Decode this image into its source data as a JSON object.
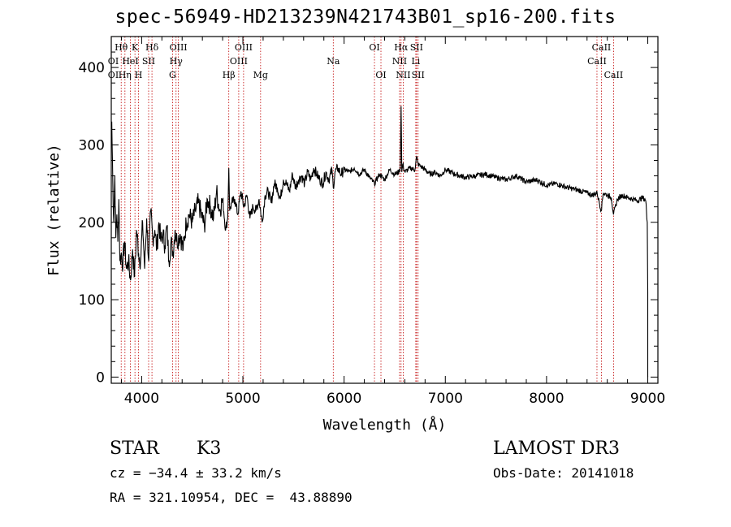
{
  "chart_data": {
    "type": "line",
    "title": "spec-56949-HD213239N421743B01_sp16-200.fits",
    "xlabel": "Wavelength (Å)",
    "ylabel": "Flux (relative)",
    "xlim": [
      3700,
      9100
    ],
    "ylim": [
      -8,
      440
    ],
    "x_ticks": [
      4000,
      5000,
      6000,
      7000,
      8000,
      9000
    ],
    "y_ticks": [
      0,
      100,
      200,
      300,
      400
    ],
    "grid": false,
    "line_color": "#000000",
    "marker_color": "#c00000",
    "series": [
      {
        "x": [
          3705,
          3715,
          3725,
          3735,
          3745,
          3755,
          3765,
          3775,
          3785,
          3800,
          3815,
          3830,
          3850,
          3870,
          3890,
          3910,
          3930,
          3950,
          3970,
          3990,
          4010,
          4030,
          4050,
          4070,
          4090,
          4110,
          4130,
          4150,
          4170,
          4190,
          4210,
          4230,
          4250,
          4270,
          4290,
          4310,
          4330,
          4350,
          4380,
          4410,
          4440,
          4470,
          4500,
          4530,
          4560,
          4590,
          4620,
          4650,
          4680,
          4710,
          4740,
          4770,
          4800,
          4830,
          4850,
          4861,
          4870,
          4890,
          4920,
          4950,
          4980,
          5010,
          5040,
          5070,
          5100,
          5130,
          5160,
          5190,
          5220,
          5250,
          5280,
          5310,
          5340,
          5370,
          5400,
          5430,
          5460,
          5490,
          5520,
          5550,
          5580,
          5610,
          5640,
          5670,
          5700,
          5730,
          5760,
          5790,
          5820,
          5850,
          5880,
          5893,
          5910,
          5940,
          5970,
          6000,
          6050,
          6100,
          6150,
          6200,
          6250,
          6300,
          6350,
          6400,
          6450,
          6500,
          6540,
          6555,
          6563,
          6570,
          6580,
          6600,
          6650,
          6700,
          6716,
          6731,
          6760,
          6800,
          6850,
          6900,
          6950,
          7000,
          7100,
          7200,
          7300,
          7400,
          7500,
          7600,
          7700,
          7800,
          7900,
          8000,
          8100,
          8200,
          8300,
          8400,
          8450,
          8500,
          8540,
          8560,
          8600,
          8640,
          8662,
          8700,
          8750,
          8800,
          8850,
          8900,
          8950,
          8980,
          8995,
          9000
        ],
        "values": [
          330,
          250,
          200,
          260,
          180,
          210,
          175,
          230,
          150,
          160,
          145,
          175,
          140,
          150,
          125,
          165,
          130,
          190,
          160,
          150,
          200,
          140,
          205,
          150,
          215,
          180,
          190,
          165,
          200,
          175,
          185,
          170,
          195,
          150,
          175,
          160,
          190,
          175,
          185,
          165,
          200,
          210,
          200,
          215,
          225,
          210,
          195,
          230,
          220,
          205,
          240,
          215,
          230,
          190,
          205,
          270,
          215,
          225,
          230,
          210,
          240,
          220,
          235,
          205,
          220,
          215,
          230,
          200,
          235,
          240,
          225,
          250,
          245,
          230,
          255,
          250,
          240,
          262,
          245,
          255,
          260,
          250,
          265,
          255,
          270,
          262,
          255,
          250,
          265,
          255,
          268,
          245,
          265,
          270,
          262,
          268,
          265,
          270,
          262,
          268,
          258,
          250,
          262,
          255,
          268,
          262,
          265,
          270,
          350,
          265,
          275,
          265,
          270,
          268,
          285,
          275,
          272,
          268,
          262,
          265,
          260,
          268,
          262,
          258,
          260,
          262,
          258,
          255,
          260,
          252,
          255,
          248,
          250,
          245,
          242,
          238,
          235,
          238,
          215,
          238,
          235,
          232,
          210,
          230,
          235,
          232,
          230,
          228,
          232,
          228,
          200,
          110
        ]
      }
    ],
    "lines": [
      {
        "name": "Hθ",
        "x": 3798
      },
      {
        "name": "Hη",
        "x": 3835
      },
      {
        "name": "HeI",
        "x": 3889
      },
      {
        "name": "K",
        "x": 3934
      },
      {
        "name": "H",
        "x": 3969
      },
      {
        "name": "SII",
        "x": 4069
      },
      {
        "name": "Hδ",
        "x": 4102
      },
      {
        "name": "Hγ",
        "x": 4340
      },
      {
        "name": "G",
        "x": 4305
      },
      {
        "name": "OIII",
        "x": 4363
      },
      {
        "name": "Hβ",
        "x": 4861
      },
      {
        "name": "OIII",
        "x": 4959
      },
      {
        "name": "OIII",
        "x": 5007
      },
      {
        "name": "Mg",
        "x": 5175
      },
      {
        "name": "Na",
        "x": 5893
      },
      {
        "name": "OI",
        "x": 6300
      },
      {
        "name": "OI",
        "x": 6364
      },
      {
        "name": "NII",
        "x": 6548
      },
      {
        "name": "Hα",
        "x": 6563
      },
      {
        "name": "NII",
        "x": 6584
      },
      {
        "name": "Li",
        "x": 6708
      },
      {
        "name": "SII",
        "x": 6716
      },
      {
        "name": "SII",
        "x": 6731
      },
      {
        "name": "CaII",
        "x": 8498
      },
      {
        "name": "CaII",
        "x": 8542
      },
      {
        "name": "CaII",
        "x": 8662
      }
    ],
    "line_labels": [
      {
        "text": "Hθ",
        "x": 3798,
        "row": 0
      },
      {
        "text": "K",
        "x": 3934,
        "row": 0
      },
      {
        "text": "Hδ",
        "x": 4102,
        "row": 0
      },
      {
        "text": "OIII",
        "x": 4363,
        "row": 0
      },
      {
        "text": "OIII",
        "x": 5007,
        "row": 0
      },
      {
        "text": "OI",
        "x": 6300,
        "row": 0
      },
      {
        "text": "Hα",
        "x": 6563,
        "row": 0
      },
      {
        "text": "SII",
        "x": 6716,
        "row": 0
      },
      {
        "text": "CaII",
        "x": 8542,
        "row": 0
      },
      {
        "text": "OI",
        "x": 3720,
        "row": 1
      },
      {
        "text": "HeI",
        "x": 3889,
        "row": 1
      },
      {
        "text": "SII",
        "x": 4069,
        "row": 1
      },
      {
        "text": "Hγ",
        "x": 4340,
        "row": 1
      },
      {
        "text": "OIII",
        "x": 4959,
        "row": 1
      },
      {
        "text": "Na",
        "x": 5893,
        "row": 1
      },
      {
        "text": "NII",
        "x": 6548,
        "row": 1
      },
      {
        "text": "Li",
        "x": 6708,
        "row": 1
      },
      {
        "text": "CaII",
        "x": 8498,
        "row": 1
      },
      {
        "text": "OI",
        "x": 3720,
        "row": 2
      },
      {
        "text": "Hη",
        "x": 3835,
        "row": 2
      },
      {
        "text": "H",
        "x": 3969,
        "row": 2
      },
      {
        "text": "G",
        "x": 4305,
        "row": 2
      },
      {
        "text": "Hβ",
        "x": 4861,
        "row": 2
      },
      {
        "text": "Mg",
        "x": 5175,
        "row": 2
      },
      {
        "text": "OI",
        "x": 6364,
        "row": 2
      },
      {
        "text": "NII",
        "x": 6584,
        "row": 2
      },
      {
        "text": "SII",
        "x": 6731,
        "row": 2
      },
      {
        "text": "CaII",
        "x": 8662,
        "row": 2
      }
    ]
  },
  "info": {
    "object_class": "STAR",
    "subclass": "K3",
    "survey": "LAMOST DR3",
    "cz": "cz = −34.4 ± 33.2 km/s",
    "obs_date": "Obs-Date: 20141018",
    "coords": "RA = 321.10954, DEC =  43.88890"
  }
}
